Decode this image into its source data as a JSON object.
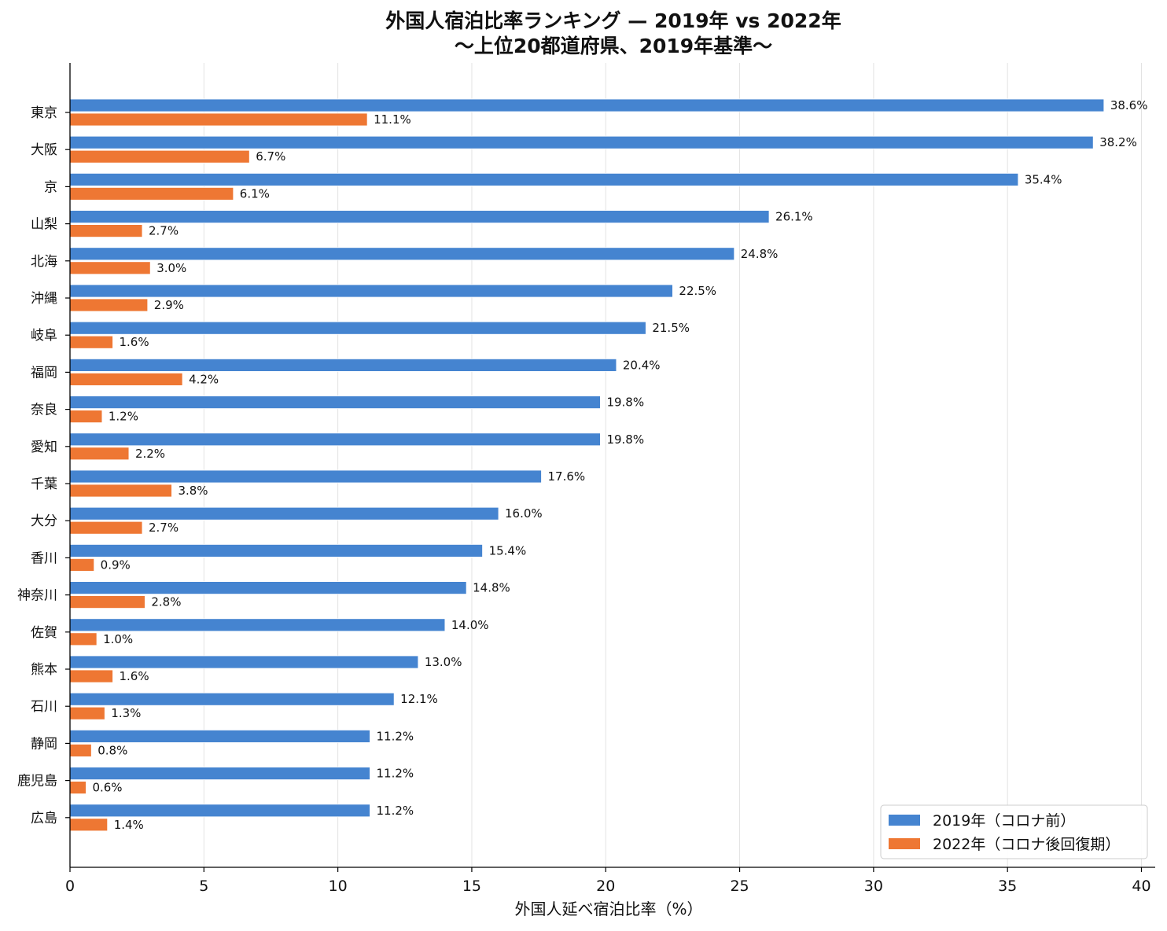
{
  "chart_data": {
    "type": "bar",
    "orientation": "horizontal",
    "title": "外国人宿泊比率ランキング — 2019年 vs 2022年",
    "subtitle": "〜上位20都道府県、2019年基準〜",
    "xlabel": "外国人延べ宿泊比率（%）",
    "ylabel": "",
    "xlim": [
      0,
      40
    ],
    "xticks": [
      "0",
      "5",
      "10",
      "15",
      "20",
      "25",
      "30",
      "35",
      "40"
    ],
    "grid": "vertical",
    "legend_position": "bottom-right",
    "categories": [
      "東京",
      "大阪",
      "京",
      "山梨",
      "北海",
      "沖縄",
      "岐阜",
      "福岡",
      "奈良",
      "愛知",
      "千葉",
      "大分",
      "香川",
      "神奈川",
      "佐賀",
      "熊本",
      "石川",
      "静岡",
      "鹿児島",
      "広島"
    ],
    "series": [
      {
        "name": "2019年（コロナ前）",
        "color": "#4584D0",
        "values": [
          38.6,
          38.2,
          35.4,
          26.1,
          24.8,
          22.5,
          21.5,
          20.4,
          19.8,
          19.8,
          17.6,
          16.0,
          15.4,
          14.8,
          14.0,
          13.0,
          12.1,
          11.2,
          11.2,
          11.2
        ],
        "labels": [
          "38.6%",
          "38.2%",
          "35.4%",
          "26.1%",
          "24.8%",
          "22.5%",
          "21.5%",
          "20.4%",
          "19.8%",
          "19.8%",
          "17.6%",
          "16.0%",
          "15.4%",
          "14.8%",
          "14.0%",
          "13.0%",
          "12.1%",
          "11.2%",
          "11.2%",
          "11.2%"
        ]
      },
      {
        "name": "2022年（コロナ後回復期）",
        "color": "#EE7733",
        "values": [
          11.1,
          6.7,
          6.1,
          2.7,
          3.0,
          2.9,
          1.6,
          4.2,
          1.2,
          2.2,
          3.8,
          2.7,
          0.9,
          2.8,
          1.0,
          1.6,
          1.3,
          0.8,
          0.6,
          1.4
        ],
        "labels": [
          "11.1%",
          "6.7%",
          "6.1%",
          "2.7%",
          "3.0%",
          "2.9%",
          "1.6%",
          "4.2%",
          "1.2%",
          "2.2%",
          "3.8%",
          "2.7%",
          "0.9%",
          "2.8%",
          "1.0%",
          "1.6%",
          "1.3%",
          "0.8%",
          "0.6%",
          "1.4%"
        ]
      }
    ]
  }
}
